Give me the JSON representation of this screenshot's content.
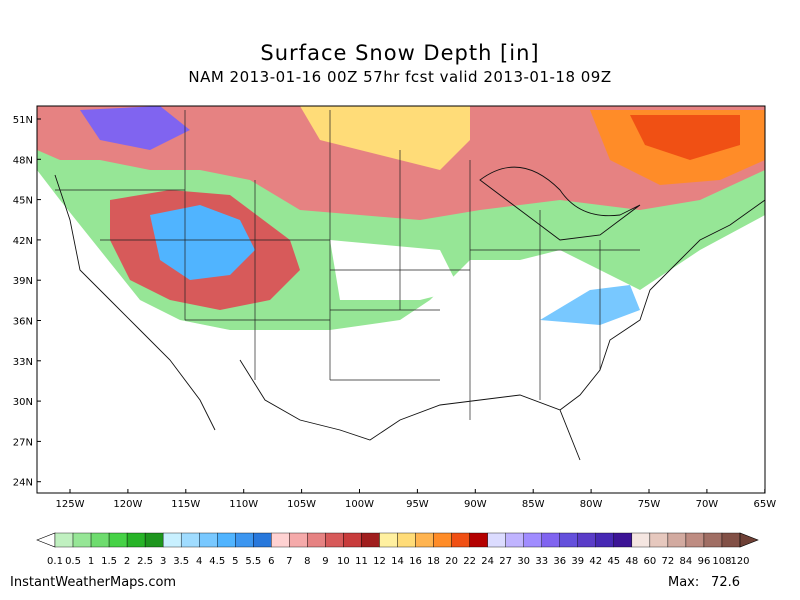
{
  "header": {
    "title": "Surface Snow Depth [in]",
    "subtitle": "NAM 2013-01-16 00Z 57hr fcst valid 2013-01-18 09Z"
  },
  "map": {
    "lat_labels": [
      "51N",
      "48N",
      "45N",
      "42N",
      "39N",
      "36N",
      "33N",
      "30N",
      "27N",
      "24N"
    ],
    "lon_labels": [
      "125W",
      "120W",
      "115W",
      "110W",
      "105W",
      "100W",
      "95W",
      "90W",
      "85W",
      "80W",
      "75W",
      "70W",
      "65W"
    ]
  },
  "legend": {
    "labels": [
      0.1,
      0.5,
      1,
      1.5,
      2,
      2.5,
      3,
      3.5,
      4,
      4.5,
      5,
      5.5,
      6,
      7,
      8,
      9,
      10,
      11,
      12,
      14,
      16,
      18,
      20,
      22,
      24,
      27,
      30,
      33,
      36,
      39,
      42,
      45,
      48,
      60,
      72,
      84,
      96,
      108,
      120
    ],
    "colors": [
      "#c0f0c0",
      "#96e696",
      "#6edc6e",
      "#46d246",
      "#28b428",
      "#1e961e",
      "#c8f0ff",
      "#a0dcff",
      "#78c8ff",
      "#50b4ff",
      "#3c96f0",
      "#2878dc",
      "#ffd2d2",
      "#f5aaaa",
      "#e68282",
      "#d75a5a",
      "#c83c3c",
      "#a01e1e",
      "#fff0a0",
      "#ffdc78",
      "#ffb450",
      "#ff8c28",
      "#f05014",
      "#b40000",
      "#dcdcff",
      "#c0b4ff",
      "#a08cff",
      "#8064f0",
      "#6450dc",
      "#5a3cc8",
      "#4628b4",
      "#3c1496",
      "#f5e6e1",
      "#e6c8be",
      "#d2aaa0",
      "#be8c82",
      "#a06e64",
      "#825046"
    ],
    "under_color": "#ffffff",
    "over_color": "#6e4036"
  },
  "footer": {
    "site": "InstantWeatherMaps.com",
    "max_label": "Max:",
    "max_value": "72.6"
  }
}
